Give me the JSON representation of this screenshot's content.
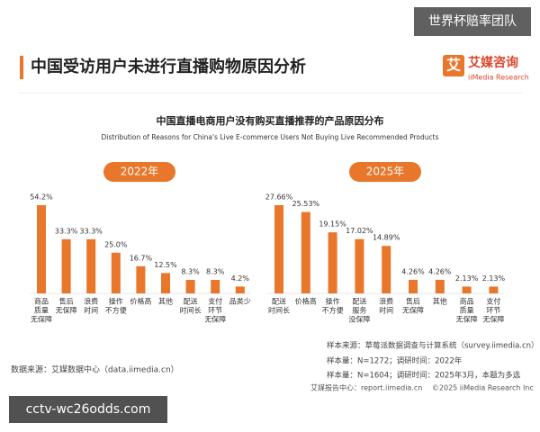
{
  "watermark": "世界杯赔率团队",
  "header": {
    "title": "中国受访用户未进行直播购物原因分析",
    "logo_mark": "艾",
    "logo_name": "艾媒咨询",
    "logo_sub": "iiMedia Research"
  },
  "figure": {
    "title": "中国直播电商用户没有购买直播推荐的产品原因分布",
    "subtitle": "Distribution of Reasons for China's Live E-commerce Users Not Buying Live Recommended Products"
  },
  "chart_data": [
    {
      "type": "bar",
      "title": "2022年",
      "color": "#e8762b",
      "categories": [
        [
          "商品",
          "质量",
          "无保障"
        ],
        [
          "售后",
          "无保障"
        ],
        [
          "浪费",
          "时间"
        ],
        [
          "操作",
          "不方便"
        ],
        [
          "价格高"
        ],
        [
          "其他"
        ],
        [
          "配送",
          "时间长"
        ],
        [
          "支付",
          "环节",
          "无保障"
        ],
        [
          "品类少"
        ]
      ],
      "values": [
        54.2,
        33.3,
        33.3,
        25.0,
        16.7,
        12.5,
        8.3,
        8.3,
        4.2
      ],
      "value_labels": [
        "54.2%",
        "33.3%",
        "33.3%",
        "25.0%",
        "16.7%",
        "12.5%",
        "8.3%",
        "8.3%",
        "4.2%"
      ]
    },
    {
      "type": "bar",
      "title": "2025年",
      "color": "#e8762b",
      "categories": [
        [
          "配送",
          "时间长"
        ],
        [
          "价格高"
        ],
        [
          "操作",
          "不方便"
        ],
        [
          "配送",
          "服务",
          "没保障"
        ],
        [
          "浪费",
          "时间"
        ],
        [
          "售后",
          "无保障"
        ],
        [
          "其他"
        ],
        [
          "商品",
          "质量",
          "无保障"
        ],
        [
          "支付",
          "环节",
          "无保障"
        ]
      ],
      "values": [
        27.66,
        25.53,
        19.15,
        17.02,
        14.89,
        4.26,
        4.26,
        2.13,
        2.13
      ],
      "value_labels": [
        "27.66%",
        "25.53%",
        "19.15%",
        "17.02%",
        "14.89%",
        "4.26%",
        "4.26%",
        "2.13%",
        "2.13%"
      ]
    }
  ],
  "notes": [
    "样本来源：草莓派数据调查与计算系统（survey.iimedia.cn）",
    "样本量：N=1272；调研时间：2022年",
    "样本量：N=1604；调研时间：2025年3月，本题为多选"
  ],
  "source": "数据来源：艾媒数据中心（data.iimedia.cn）",
  "footer": "艾媒报告中心：report.iimedia.cn　 ©2025  iiMedia Research  Inc",
  "overlay": "cctv-wc26odds.com"
}
